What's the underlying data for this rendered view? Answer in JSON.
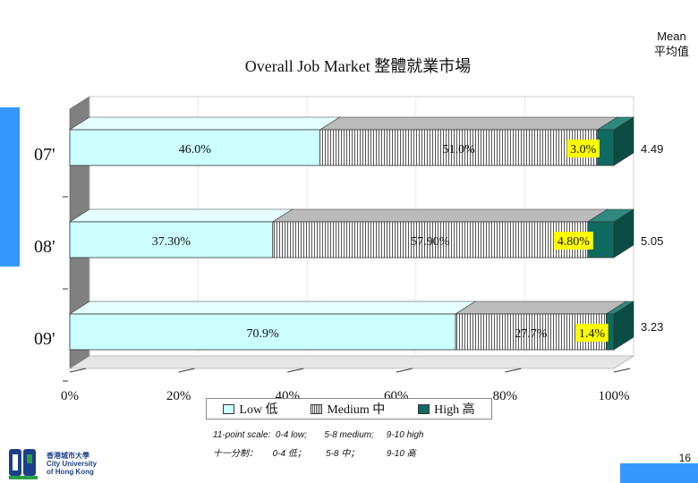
{
  "title": "Overall Job Market 整體就業市場",
  "mean_header": [
    "Mean",
    "平均值"
  ],
  "chart_data": {
    "type": "bar",
    "orientation": "horizontal",
    "stacked": true,
    "title": "Overall Job Market 整體就業市場",
    "categories": [
      "07'",
      "08'",
      "09'"
    ],
    "series": [
      {
        "name": "Low 低",
        "values": [
          46.0,
          37.3,
          70.9
        ],
        "labels": [
          "46.0%",
          "37.30%",
          "70.9%"
        ],
        "color": "#ccffff"
      },
      {
        "name": "Medium 中",
        "values": [
          51.0,
          57.9,
          27.7
        ],
        "labels": [
          "51.0%",
          "57.90%",
          "27.7%"
        ],
        "color": "#777777"
      },
      {
        "name": "High 高",
        "values": [
          3.0,
          4.8,
          1.4
        ],
        "labels": [
          "3.0%",
          "4.80%",
          "1.4%"
        ],
        "color": "#0f6b60"
      }
    ],
    "means": [
      "4.49",
      "5.05",
      "3.23"
    ],
    "x_ticks": [
      "0%",
      "20%",
      "40%",
      "60%",
      "80%",
      "100%"
    ],
    "xlim": [
      0,
      100
    ],
    "legend_position": "bottom"
  },
  "notes": {
    "line1": "11-point scale:  0-4 low;       5-8 medium;     9-10 high",
    "line2": "十一分制：      0-4 低；        5-8 中；           9-10 高"
  },
  "logo": {
    "line1": "香港城市大學",
    "line2": "City University",
    "line3": "of Hong Kong"
  },
  "page_number": "16"
}
